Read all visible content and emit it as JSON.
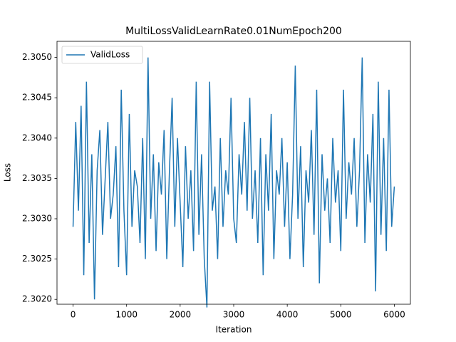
{
  "chart_data": {
    "type": "line",
    "title": "MultiLossValidLearnRate0.01NumEpoch200",
    "x_label": "Iteration",
    "y_label": "Loss",
    "legend": "upper left",
    "x": [
      0,
      50,
      100,
      150,
      200,
      250,
      300,
      350,
      400,
      450,
      500,
      550,
      600,
      650,
      700,
      750,
      800,
      850,
      900,
      950,
      1000,
      1050,
      1100,
      1150,
      1200,
      1250,
      1300,
      1350,
      1400,
      1450,
      1500,
      1550,
      1600,
      1650,
      1700,
      1750,
      1800,
      1850,
      1900,
      1950,
      2000,
      2050,
      2100,
      2150,
      2200,
      2250,
      2300,
      2350,
      2400,
      2450,
      2500,
      2550,
      2600,
      2650,
      2700,
      2750,
      2800,
      2850,
      2900,
      2950,
      3000,
      3050,
      3100,
      3150,
      3200,
      3250,
      3300,
      3350,
      3400,
      3450,
      3500,
      3550,
      3600,
      3650,
      3700,
      3750,
      3800,
      3850,
      3900,
      3950,
      4000,
      4050,
      4100,
      4150,
      4200,
      4250,
      4300,
      4350,
      4400,
      4450,
      4500,
      4550,
      4600,
      4650,
      4700,
      4750,
      4800,
      4850,
      4900,
      4950,
      5000,
      5050,
      5100,
      5150,
      5200,
      5250,
      5300,
      5350,
      5400,
      5450,
      5500,
      5550,
      5600,
      5650,
      5700,
      5750,
      5800,
      5850,
      5900,
      5950,
      6000
    ],
    "series": [
      {
        "name": "ValidLoss",
        "color": "#1f77b4",
        "values": [
          2.3029,
          2.3042,
          2.3031,
          2.3044,
          2.3023,
          2.3047,
          2.3027,
          2.3038,
          2.302,
          2.3036,
          2.3041,
          2.3028,
          2.3035,
          2.3042,
          2.303,
          2.3033,
          2.3039,
          2.3024,
          2.3046,
          2.3031,
          2.3023,
          2.3043,
          2.3029,
          2.3036,
          2.3034,
          2.3027,
          2.304,
          2.3025,
          2.305,
          2.303,
          2.3038,
          2.3026,
          2.3037,
          2.3033,
          2.3041,
          2.3025,
          2.3036,
          2.3045,
          2.3029,
          2.304,
          2.3032,
          2.3024,
          2.3039,
          2.303,
          2.3036,
          2.3026,
          2.3047,
          2.3028,
          2.3038,
          2.3025,
          2.3019,
          2.3047,
          2.3031,
          2.3034,
          2.3025,
          2.304,
          2.3029,
          2.3036,
          2.3033,
          2.3045,
          2.303,
          2.3027,
          2.3038,
          2.3033,
          2.3042,
          2.3031,
          2.3045,
          2.303,
          2.3036,
          2.3027,
          2.304,
          2.3023,
          2.3038,
          2.3031,
          2.3043,
          2.3025,
          2.3036,
          2.3033,
          2.304,
          2.3029,
          2.3037,
          2.3025,
          2.3033,
          2.3049,
          2.303,
          2.3039,
          2.3024,
          2.3036,
          2.3032,
          2.3041,
          2.3028,
          2.3046,
          2.3022,
          2.3038,
          2.3031,
          2.3035,
          2.3027,
          2.304,
          2.3032,
          2.3036,
          2.3026,
          2.3046,
          2.303,
          2.3037,
          2.3033,
          2.304,
          2.3029,
          2.3036,
          2.305,
          2.3027,
          2.3038,
          2.3032,
          2.3043,
          2.3021,
          2.3047,
          2.3028,
          2.304,
          2.3026,
          2.3046,
          2.3029,
          2.3034
        ]
      }
    ],
    "xlim": [
      -300,
      6300
    ],
    "xticks": [
      0,
      1000,
      2000,
      3000,
      4000,
      5000,
      6000
    ],
    "ylim": [
      2.30194,
      2.3052
    ],
    "yticks": [
      {
        "value": 2.302,
        "label": "2.3020"
      },
      {
        "value": 2.3025,
        "label": "2.3025"
      },
      {
        "value": 2.303,
        "label": "2.3030"
      },
      {
        "value": 2.3035,
        "label": "2.3035"
      },
      {
        "value": 2.304,
        "label": "2.3040"
      },
      {
        "value": 2.3045,
        "label": "2.3045"
      },
      {
        "value": 2.305,
        "label": "2.3050"
      }
    ]
  }
}
